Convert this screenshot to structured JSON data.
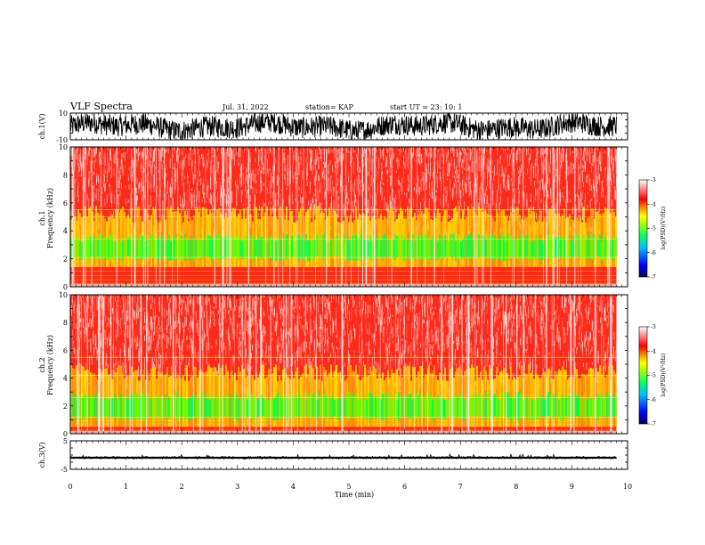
{
  "header": {
    "title": "VLF Spectra",
    "date": "Jul. 31, 2022",
    "station": "station= KAP",
    "start": "start UT =  23: 10: 1"
  },
  "chart_data": [
    {
      "type": "line",
      "name": "ch1-waveform",
      "ylabel": "ch.1(V)",
      "ylim": [
        -10,
        10
      ],
      "ytick_labels": [
        "10",
        "-10"
      ],
      "xlim": [
        0,
        10
      ],
      "data_xmax": 9.8,
      "description_values": "noisy waveform mostly between -8 and +9 V"
    },
    {
      "type": "heatmap",
      "name": "ch1-spectrogram",
      "ylabel": "ch.1\nFrequency (kHz)",
      "ylabel_lines": [
        "ch.1",
        "Frequency (kHz)"
      ],
      "ylim": [
        0,
        10
      ],
      "ytick_labels": [
        "0",
        "2",
        "4",
        "6",
        "8",
        "10"
      ],
      "xlim": [
        0,
        10
      ],
      "data_xmax": 9.8,
      "colorbar": {
        "label": "log(PSD)(V²/Hz)",
        "range": [
          -7,
          -3
        ],
        "tick_labels": [
          "-3",
          "-4",
          "-5",
          "-6",
          "-7"
        ]
      }
    },
    {
      "type": "heatmap",
      "name": "ch2-spectrogram",
      "ylabel_lines": [
        "ch.2",
        "Frequency (kHz)"
      ],
      "ylim": [
        0,
        10
      ],
      "ytick_labels": [
        "0",
        "2",
        "4",
        "6",
        "8",
        "10"
      ],
      "xlim": [
        0,
        10
      ],
      "data_xmax": 9.8,
      "colorbar": {
        "label": "log(PSD)(V²/Hz)",
        "range": [
          -7,
          -3
        ],
        "tick_labels": [
          "-3",
          "-4",
          "-5",
          "-6",
          "-7"
        ]
      }
    },
    {
      "type": "line",
      "name": "ch3-waveform",
      "ylabel": "ch.3(V)",
      "ylim": [
        -5,
        5
      ],
      "ytick_labels": [
        "5",
        "-5"
      ],
      "xlim": [
        0,
        10
      ],
      "data_xmax": 9.8,
      "xlabel": "Time (min)",
      "xtick_labels": [
        "0",
        "1",
        "2",
        "3",
        "4",
        "5",
        "6",
        "7",
        "8",
        "9",
        "10"
      ]
    }
  ],
  "colors": {
    "colormap": [
      "#000080",
      "#0000ff",
      "#00c8ff",
      "#00ff80",
      "#80ff00",
      "#ffff00",
      "#ffa000",
      "#ff0000",
      "#ffffff"
    ]
  }
}
